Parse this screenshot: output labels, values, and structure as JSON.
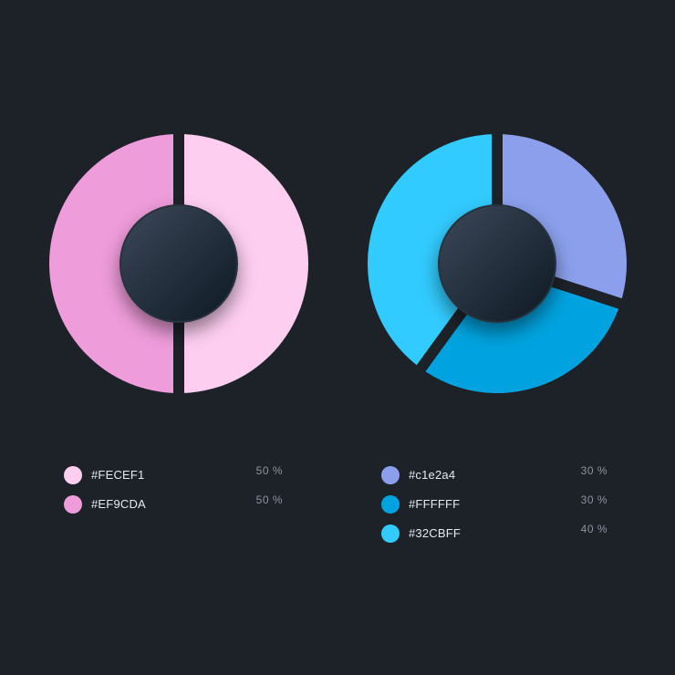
{
  "chart_data": [
    {
      "type": "pie",
      "slices": [
        {
          "label": "#FECEF1",
          "value": 50,
          "value_text": "50 %",
          "color": "#FECEF1"
        },
        {
          "label": "#EF9CDA",
          "value": 50,
          "value_text": "50 %",
          "color": "#EF9CDA"
        }
      ],
      "legend": "bottom"
    },
    {
      "type": "pie",
      "slices": [
        {
          "label": "#c1e2a4",
          "value": 30,
          "value_text": "30 %",
          "color": "#8B9FEC"
        },
        {
          "label": "#FFFFFF",
          "value": 30,
          "value_text": "30 %",
          "color": "#00A3DF"
        },
        {
          "label": "#32CBFF",
          "value": 40,
          "value_text": "40 %",
          "color": "#32CBFF"
        }
      ],
      "legend": "bottom"
    }
  ],
  "colors": {
    "background": "#1d2229",
    "hub_light": "#3a4657",
    "hub_dark": "#0f1a25"
  }
}
